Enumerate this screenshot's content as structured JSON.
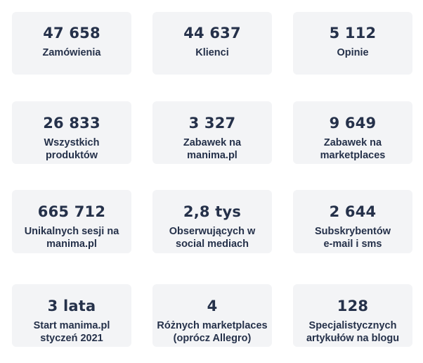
{
  "stats": [
    {
      "value": "47 658",
      "label_lines": [
        "Zamówienia"
      ]
    },
    {
      "value": "44 637",
      "label_lines": [
        "Klienci"
      ]
    },
    {
      "value": "5 112",
      "label_lines": [
        "Opinie"
      ]
    },
    {
      "value": "26 833",
      "label_lines": [
        "Wszystkich",
        "produktów"
      ]
    },
    {
      "value": "3 327",
      "label_lines": [
        "Zabawek na",
        "manima.pl"
      ]
    },
    {
      "value": "9 649",
      "label_lines": [
        "Zabawek na",
        "marketplaces"
      ]
    },
    {
      "value": "665 712",
      "label_lines": [
        "Unikalnych sesji na",
        "manima.pl"
      ]
    },
    {
      "value": "2,8 tys",
      "label_lines": [
        "Obserwujących w",
        "social mediach"
      ]
    },
    {
      "value": "2 644",
      "label_lines": [
        "Subskrybentów",
        "e-mail i sms"
      ]
    },
    {
      "value": "3 lata",
      "label_lines": [
        "Start manima.pl",
        "styczeń 2021"
      ]
    },
    {
      "value": "4",
      "label_lines": [
        "Różnych marketplaces",
        "(oprócz Allegro)"
      ]
    },
    {
      "value": "128",
      "label_lines": [
        "Specjalistycznych",
        "artykułów na blogu"
      ]
    }
  ],
  "colors": {
    "card_background": "#f3f4f6",
    "text": "#25314a",
    "page_background": "#ffffff"
  }
}
